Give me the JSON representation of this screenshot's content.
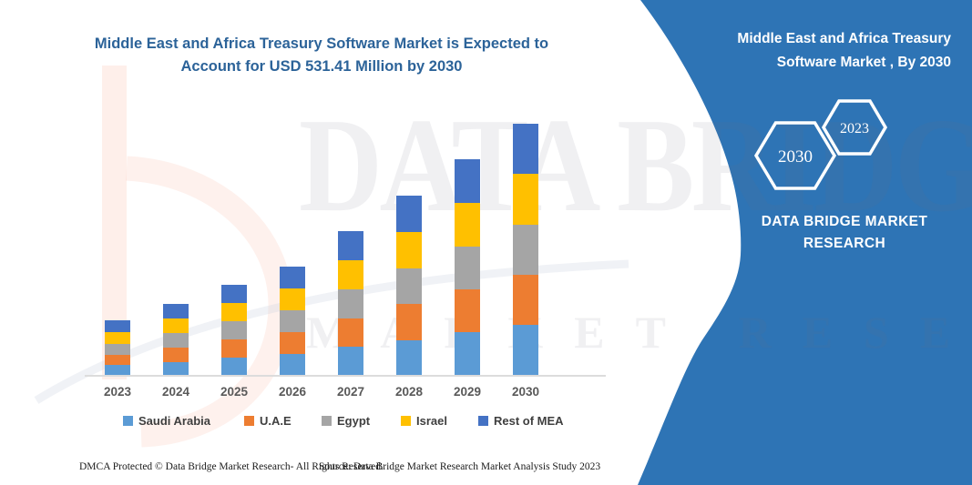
{
  "chart": {
    "title_line1": "Middle East and Africa Treasury Software Market  is Expected to",
    "title_line2": "Account for USD 531.41 Million by 2030"
  },
  "chart_data": {
    "type": "bar",
    "stacked": true,
    "title": "Middle East and Africa Treasury Software Market  is Expected to Account for USD 531.41 Million by 2030",
    "unit": "USD Million",
    "categories": [
      "2023",
      "2024",
      "2025",
      "2026",
      "2027",
      "2028",
      "2029",
      "2030"
    ],
    "series": [
      {
        "name": "Saudi Arabia",
        "color": "#5B9BD5",
        "values": [
          21,
          28,
          37,
          44,
          59,
          74,
          90,
          106
        ]
      },
      {
        "name": "U.A.E",
        "color": "#ED7D31",
        "values": [
          22,
          30,
          38,
          46,
          61,
          76,
          91,
          106
        ]
      },
      {
        "name": "Egypt",
        "color": "#A5A5A5",
        "values": [
          23,
          30,
          38,
          46,
          61,
          76,
          91,
          106
        ]
      },
      {
        "name": "Israel",
        "color": "#FFC000",
        "values": [
          24,
          31,
          39,
          46,
          61,
          76,
          92,
          107
        ]
      },
      {
        "name": "Rest of MEA",
        "color": "#4472C4",
        "values": [
          25,
          31,
          39,
          47,
          62,
          77,
          92,
          106.41
        ]
      }
    ],
    "totals_usd_million": [
      115,
      150,
      191,
      229,
      304,
      379,
      456,
      531.41
    ],
    "labeled_value": "USD 531.41 Million by 2030",
    "ylim": [
      0,
      560
    ],
    "gridlines": false,
    "legend_position": "bottom"
  },
  "watermark": {
    "line1": "DATA BRIDGE",
    "line2": "MARKET RESEARCH"
  },
  "panel": {
    "color": "#2e74b5",
    "title": "Middle East and Africa Treasury Software Market , By 2030",
    "hexagon_large": "2030",
    "hexagon_small": "2023",
    "brand_line1": "DATA BRIDGE MARKET",
    "brand_line2": "RESEARCH"
  },
  "footer": {
    "left": "DMCA Protected © Data Bridge Market Research-  All Rights Reserved.",
    "source": "Source: Data Bridge Market Research  Market Analysis Study 2023"
  }
}
